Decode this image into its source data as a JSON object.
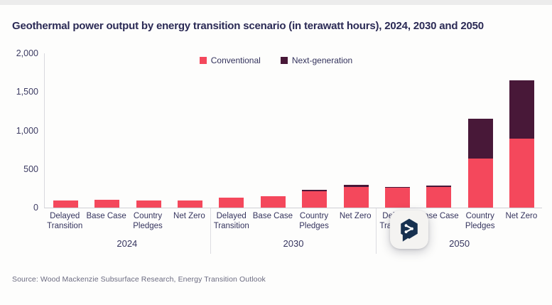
{
  "title": "Geothermal power output by energy transition scenario (in terawatt hours), 2024, 2030 and 2050",
  "source": "Source: Wood Mackenzie Subsurface Research, Energy Transition Outlook",
  "colors": {
    "conventional": "#F4485C",
    "next_generation": "#481838",
    "text": "#2b2a55",
    "axis_line": "#d9d9de"
  },
  "legend": {
    "items": [
      {
        "label": "Conventional",
        "color": "#F4485C"
      },
      {
        "label": "Next-generation",
        "color": "#481838"
      }
    ]
  },
  "overlay_button": {
    "icon": "share-bubble-icon"
  },
  "chart_data": {
    "type": "bar",
    "stacked": true,
    "title": "Geothermal power output by energy transition scenario (in terawatt hours), 2024, 2030 and 2050",
    "ylabel": "terawatt hours",
    "ylim": [
      0,
      2000
    ],
    "ytick_values": [
      0,
      500,
      1000,
      1500,
      2000
    ],
    "ytick_labels": [
      "0",
      "500",
      "1,000",
      "1,500",
      "2,000"
    ],
    "grid": false,
    "legend_position": "top-center",
    "series_names": [
      "Conventional",
      "Next-generation"
    ],
    "groups": [
      {
        "year": "2024",
        "bars": [
          {
            "label": "Delayed Transition",
            "conventional": 90,
            "next_generation": 0
          },
          {
            "label": "Base Case",
            "conventional": 100,
            "next_generation": 0
          },
          {
            "label": "Country Pledges",
            "conventional": 95,
            "next_generation": 0
          },
          {
            "label": "Net Zero",
            "conventional": 95,
            "next_generation": 0
          }
        ]
      },
      {
        "year": "2030",
        "bars": [
          {
            "label": "Delayed Transition",
            "conventional": 125,
            "next_generation": 0
          },
          {
            "label": "Base Case",
            "conventional": 145,
            "next_generation": 0
          },
          {
            "label": "Country Pledges",
            "conventional": 210,
            "next_generation": 20
          },
          {
            "label": "Net Zero",
            "conventional": 265,
            "next_generation": 30
          }
        ]
      },
      {
        "year": "2050",
        "bars": [
          {
            "label": "Delayed Transition",
            "conventional": 255,
            "next_generation": 10
          },
          {
            "label": "Base Case",
            "conventional": 270,
            "next_generation": 15
          },
          {
            "label": "Country Pledges",
            "conventional": 640,
            "next_generation": 510
          },
          {
            "label": "Net Zero",
            "conventional": 890,
            "next_generation": 760
          }
        ]
      }
    ]
  }
}
